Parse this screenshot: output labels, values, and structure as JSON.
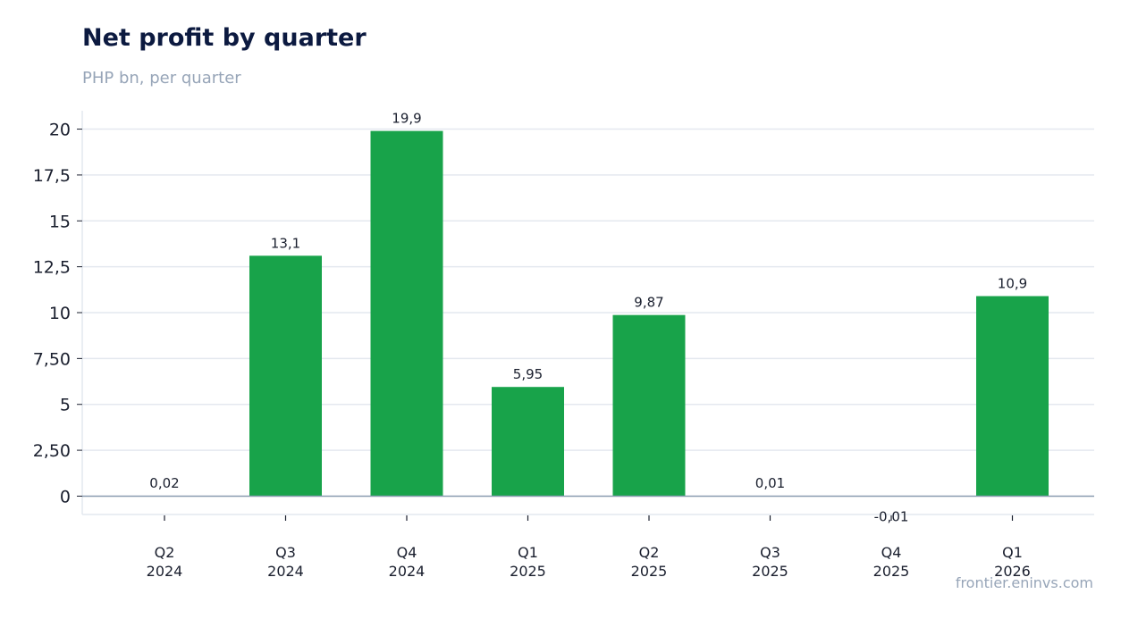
{
  "chart_data": {
    "type": "bar",
    "title": "Net profit by quarter",
    "subtitle": "PHP bn, per quarter",
    "xlabel": "",
    "ylabel": "",
    "categories": [
      [
        "Q2",
        "2024"
      ],
      [
        "Q3",
        "2024"
      ],
      [
        "Q4",
        "2024"
      ],
      [
        "Q1",
        "2025"
      ],
      [
        "Q2",
        "2025"
      ],
      [
        "Q3",
        "2025"
      ],
      [
        "Q4",
        "2025"
      ],
      [
        "Q1",
        "2026"
      ]
    ],
    "values": [
      0.02,
      13.1,
      19.9,
      5.95,
      9.87,
      0.01,
      -0.01,
      10.9
    ],
    "data_labels": [
      "0,02",
      "13,1",
      "19,9",
      "5,95",
      "9,87",
      "0,01",
      "-0,01",
      "10,9"
    ],
    "ylim": [
      -1,
      21
    ],
    "yticks": [
      0,
      2.5,
      5,
      7.5,
      10,
      12.5,
      15,
      17.5,
      20
    ],
    "ytick_labels": [
      "0",
      "2,50",
      "5",
      "7,50",
      "10",
      "12,5",
      "15",
      "17,5",
      "20"
    ],
    "grid": true,
    "legend": "none",
    "colors": {
      "bar": "#18a34a",
      "grid": "#e4e8ef",
      "zero_line": "#8a9bb0",
      "axis": "#e4e8ef"
    }
  },
  "credit": "frontier.eninvs.com"
}
